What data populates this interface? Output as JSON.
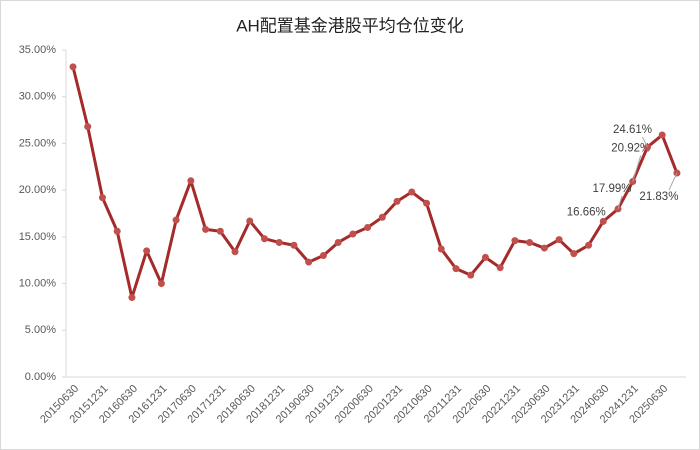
{
  "chart_data": {
    "type": "line",
    "title": "AH配置基金港股平均仓位变化",
    "categories": [
      "20150630",
      null,
      "20151231",
      null,
      "20160630",
      null,
      "20161231",
      null,
      "20170630",
      null,
      "20171231",
      null,
      "20180630",
      null,
      "20181231",
      null,
      "20190630",
      null,
      "20191231",
      null,
      "20200630",
      null,
      "20201231",
      null,
      "20210630",
      null,
      "20211231",
      null,
      "20220630",
      null,
      "20221231",
      null,
      "20230630",
      null,
      "20231231",
      null,
      "20240630",
      null,
      "20241231",
      null,
      "20250630",
      null
    ],
    "series": [
      {
        "name": "AH配置基金港股平均仓位",
        "color": "#a52a2a",
        "marker_color": "#c0504d",
        "values": [
          33.2,
          26.8,
          19.2,
          15.6,
          8.5,
          13.5,
          10.0,
          16.8,
          21.0,
          15.8,
          15.6,
          13.4,
          16.7,
          14.8,
          14.4,
          14.1,
          12.3,
          13.0,
          14.4,
          15.3,
          16.0,
          17.1,
          18.8,
          19.8,
          18.6,
          13.7,
          11.6,
          10.9,
          12.8,
          11.7,
          14.6,
          14.4,
          13.8,
          14.7,
          13.2,
          14.1,
          16.66,
          17.99,
          20.92,
          24.61,
          25.9,
          21.83
        ],
        "value_labels": [
          null,
          null,
          null,
          null,
          null,
          null,
          null,
          null,
          null,
          null,
          null,
          null,
          null,
          null,
          null,
          null,
          null,
          null,
          null,
          null,
          null,
          null,
          null,
          null,
          null,
          null,
          null,
          null,
          null,
          null,
          null,
          null,
          null,
          null,
          null,
          null,
          "16.66%",
          "17.99%",
          "20.92%",
          "24.61%",
          null,
          "21.83%"
        ]
      }
    ],
    "ylim": [
      0,
      35
    ],
    "yticks": [
      {
        "value": 0,
        "label": "0.00%"
      },
      {
        "value": 5,
        "label": "5.00%"
      },
      {
        "value": 10,
        "label": "10.00%"
      },
      {
        "value": 15,
        "label": "15.00%"
      },
      {
        "value": 20,
        "label": "20.00%"
      },
      {
        "value": 25,
        "label": "25.00%"
      },
      {
        "value": 30,
        "label": "30.00%"
      },
      {
        "value": 35,
        "label": "35.00%"
      }
    ],
    "grid": false
  }
}
